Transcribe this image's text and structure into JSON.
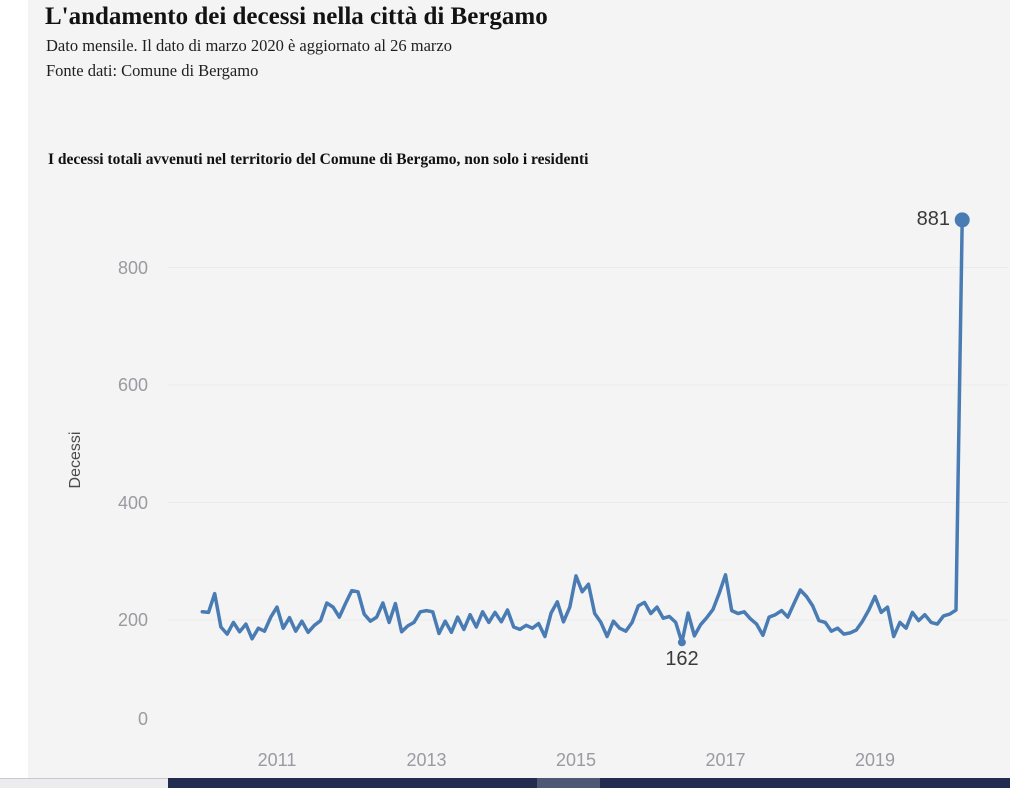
{
  "page": {
    "title": "L'andamento dei decessi nella città di Bergamo",
    "subtitle": "Dato mensile. Il dato di marzo 2020 è aggiornato al 26 marzo",
    "source": "Fonte dati: Comune di Bergamo",
    "chart_heading": "I decessi totali avvenuti nel territorio del Comune di Bergamo, non solo i residenti"
  },
  "colors": {
    "line": "#4a7cb4",
    "grid": "#ebebed",
    "panel_background": "#f4f4f5",
    "tick_text": "#9a9aa0",
    "annotation_text": "#3a3a3a",
    "bottom_bar_track": "#222b50",
    "bottom_bar_thumb": "#4d5776"
  },
  "chart_data": {
    "type": "line",
    "title": "I decessi totali avvenuti nel territorio del Comune di Bergamo, non solo i residenti",
    "xlabel": "",
    "ylabel": "Decessi",
    "x_start": "2010-01",
    "x_end": "2020-03",
    "x_unit": "month",
    "ylim": [
      0,
      900
    ],
    "grid": "horizontal-only",
    "y_gridline_values": [
      200,
      400,
      600,
      800
    ],
    "y_ticks": [
      {
        "label": "0",
        "value": 0
      },
      {
        "label": "200",
        "value": 200
      },
      {
        "label": "400",
        "value": 400
      },
      {
        "label": "600",
        "value": 600
      },
      {
        "label": "800",
        "value": 800
      }
    ],
    "x_ticks": [
      {
        "label": "2011",
        "month_index": 12
      },
      {
        "label": "2013",
        "month_index": 36
      },
      {
        "label": "2015",
        "month_index": 60
      },
      {
        "label": "2017",
        "month_index": 84
      },
      {
        "label": "2019",
        "month_index": 108
      }
    ],
    "series": [
      {
        "name": "Decessi",
        "color": "#4a7cb4",
        "values": [
          214,
          213,
          245,
          188,
          176,
          196,
          180,
          193,
          168,
          186,
          181,
          205,
          222,
          186,
          204,
          181,
          198,
          179,
          191,
          199,
          229,
          222,
          205,
          228,
          250,
          248,
          210,
          198,
          205,
          229,
          196,
          228,
          180,
          190,
          196,
          214,
          216,
          214,
          177,
          198,
          179,
          205,
          184,
          209,
          188,
          214,
          196,
          213,
          197,
          217,
          188,
          184,
          191,
          186,
          194,
          172,
          212,
          231,
          197,
          222,
          275,
          248,
          261,
          211,
          196,
          172,
          198,
          186,
          181,
          196,
          224,
          230,
          211,
          222,
          203,
          206,
          196,
          162,
          212,
          173,
          192,
          204,
          218,
          246,
          277,
          216,
          211,
          214,
          202,
          193,
          174,
          205,
          209,
          216,
          205,
          228,
          251,
          240,
          224,
          199,
          196,
          181,
          186,
          176,
          178,
          183,
          198,
          217,
          240,
          213,
          222,
          172,
          196,
          186,
          213,
          199,
          209,
          196,
          193,
          207,
          210,
          217,
          881
        ]
      }
    ],
    "markers": [
      {
        "index": 77,
        "r": 4
      },
      {
        "index": 122,
        "r": 7.5
      }
    ],
    "annotations": [
      {
        "label": "881",
        "index": 122,
        "value": 881,
        "position": "left-of-point"
      },
      {
        "label": "162",
        "index": 77,
        "value": 162,
        "position": "below-point"
      }
    ]
  }
}
